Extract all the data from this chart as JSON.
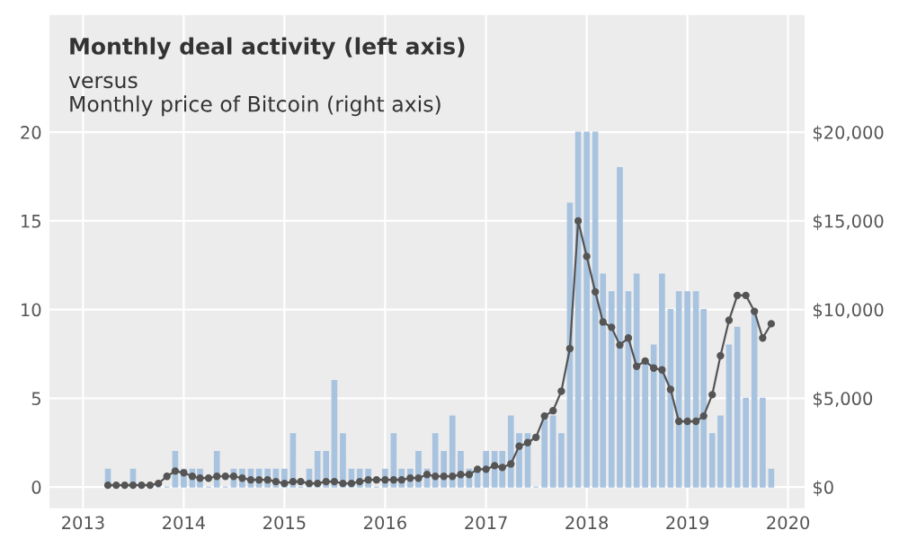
{
  "chart_data": {
    "type": "bar",
    "title": "Monthly deal activity (left axis)",
    "subtitle": "versus\nMonthly price of Bitcoin (right axis)",
    "x": [
      "2013-04",
      "2013-05",
      "2013-06",
      "2013-07",
      "2013-08",
      "2013-09",
      "2013-10",
      "2013-11",
      "2013-12",
      "2014-01",
      "2014-02",
      "2014-03",
      "2014-04",
      "2014-05",
      "2014-06",
      "2014-07",
      "2014-08",
      "2014-09",
      "2014-10",
      "2014-11",
      "2014-12",
      "2015-01",
      "2015-02",
      "2015-03",
      "2015-04",
      "2015-05",
      "2015-06",
      "2015-07",
      "2015-08",
      "2015-09",
      "2015-10",
      "2015-11",
      "2015-12",
      "2016-01",
      "2016-02",
      "2016-03",
      "2016-04",
      "2016-05",
      "2016-06",
      "2016-07",
      "2016-08",
      "2016-09",
      "2016-10",
      "2016-11",
      "2016-12",
      "2017-01",
      "2017-02",
      "2017-03",
      "2017-04",
      "2017-05",
      "2017-06",
      "2017-07",
      "2017-08",
      "2017-09",
      "2017-10",
      "2017-11",
      "2017-12",
      "2018-01",
      "2018-02",
      "2018-03",
      "2018-04",
      "2018-05",
      "2018-06",
      "2018-07",
      "2018-08",
      "2018-09",
      "2018-10",
      "2018-11",
      "2018-12",
      "2019-01",
      "2019-02",
      "2019-03",
      "2019-04",
      "2019-05",
      "2019-06",
      "2019-07",
      "2019-08",
      "2019-09",
      "2019-10",
      "2019-11"
    ],
    "series": [
      {
        "color": "#a8c3df",
        "values": [
          1,
          0,
          0,
          1,
          0,
          0,
          0,
          0,
          2,
          1,
          1,
          1,
          0,
          2,
          0,
          1,
          1,
          1,
          1,
          1,
          1,
          1,
          3,
          0,
          1,
          2,
          2,
          6,
          3,
          1,
          1,
          1,
          0,
          1,
          3,
          1,
          1,
          2,
          1,
          3,
          2,
          4,
          2,
          1,
          1,
          2,
          2,
          2,
          4,
          3,
          3,
          0,
          4,
          4,
          3,
          16,
          20,
          20,
          20,
          12,
          11,
          18,
          11,
          12,
          7,
          8,
          12,
          10,
          11,
          11,
          11,
          10,
          3,
          4,
          8,
          9,
          5,
          10,
          5,
          1
        ]
      },
      {
        "type": "line",
        "axis": "y2",
        "color": "#555555",
        "values": [
          100,
          100,
          100,
          100,
          100,
          100,
          200,
          600,
          900,
          800,
          600,
          500,
          500,
          600,
          600,
          600,
          500,
          400,
          400,
          400,
          300,
          200,
          300,
          300,
          200,
          200,
          300,
          300,
          200,
          200,
          300,
          400,
          400,
          400,
          400,
          400,
          500,
          500,
          700,
          600,
          600,
          600,
          700,
          700,
          1000,
          1000,
          1200,
          1100,
          1300,
          2300,
          2500,
          2800,
          4000,
          4300,
          5400,
          7800,
          15000,
          13000,
          11000,
          9300,
          9000,
          8000,
          8400,
          6800,
          7100,
          6700,
          6600,
          5500,
          3700,
          3700,
          3700,
          4000,
          5200,
          7400,
          9400,
          10800,
          10800,
          9900,
          8400,
          9200
        ]
      }
    ],
    "xlim": [
      "2012-09",
      "2020-03"
    ],
    "xticks": [
      "2013",
      "2014",
      "2015",
      "2016",
      "2017",
      "2018",
      "2019",
      "2020"
    ],
    "ylim": [
      -1.2,
      26.6
    ],
    "yticks": [
      0,
      5,
      10,
      15,
      20
    ],
    "y2lim": [
      -1200,
      26600
    ],
    "y2ticks": [
      {
        "value": 0,
        "label": "$0"
      },
      {
        "value": 5000,
        "label": "$5,000"
      },
      {
        "value": 10000,
        "label": "$10,000"
      },
      {
        "value": 15000,
        "label": "$15,000"
      },
      {
        "value": 20000,
        "label": "$20,000"
      }
    ],
    "grid": true,
    "marker": "circle",
    "line_style": "solid"
  }
}
